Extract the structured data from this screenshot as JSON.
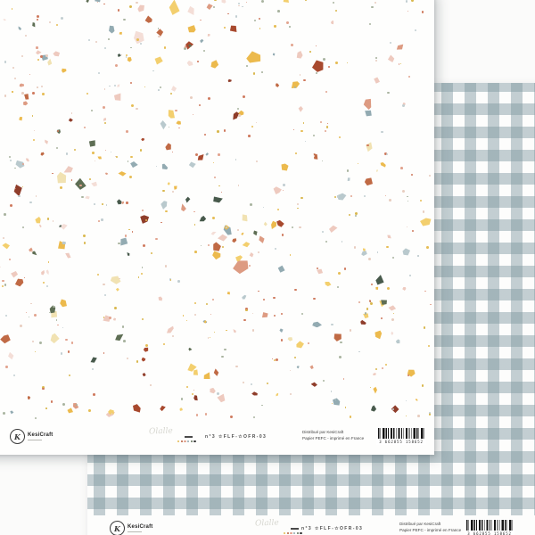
{
  "scene": {
    "background_color": "#fbfbfa",
    "description": "Two overlapping square scrapbook paper sheets, front with terrazzo confetti print, back with gingham check print"
  },
  "product_info": {
    "brand_monogram": "K",
    "brand_name": "KesiCraft",
    "collection_watermark": "Olalle",
    "reference": "n°3  ☆FLF-☆OFR-03",
    "distributor_line1": "Distribué par KesiCraft",
    "distributor_line2": "Papier PEFC - imprimé en France",
    "barcode_digits": "3 662855 158652",
    "watermark_dot_colors": [
      "#e3b94e",
      "#b85c3a",
      "#e2a18c",
      "#8fa7ae",
      "#5f6f55",
      "#383838"
    ]
  },
  "front_sheet": {
    "pattern": "terrazzo-confetti",
    "base_color": "#fefefd",
    "speck_colors": [
      {
        "color": "#ecba4d",
        "weight": 3
      },
      {
        "color": "#f3cf6e",
        "weight": 2
      },
      {
        "color": "#f1e2b2",
        "weight": 1
      },
      {
        "color": "#c06a45",
        "weight": 2
      },
      {
        "color": "#a8492e",
        "weight": 1.5
      },
      {
        "color": "#dd9b82",
        "weight": 2
      },
      {
        "color": "#eecabf",
        "weight": 2.5
      },
      {
        "color": "#f4ded7",
        "weight": 2
      },
      {
        "color": "#93abb2",
        "weight": 2
      },
      {
        "color": "#b9c9cd",
        "weight": 1.2
      },
      {
        "color": "#5e6e54",
        "weight": 1.3
      },
      {
        "color": "#485a4c",
        "weight": 1
      },
      {
        "color": "#8f3d2a",
        "weight": 0.8
      }
    ],
    "dot_colors": [
      "#e6bd55",
      "#e2a38e",
      "#c2ced1",
      "#cf7a5e",
      "#a9b4a0",
      "#e8cdbf",
      "#d9b84e"
    ]
  },
  "back_sheet": {
    "pattern": "gingham-check",
    "base_color": "#fdfdfc",
    "check_color": "rgba(124,150,158,0.45)"
  }
}
